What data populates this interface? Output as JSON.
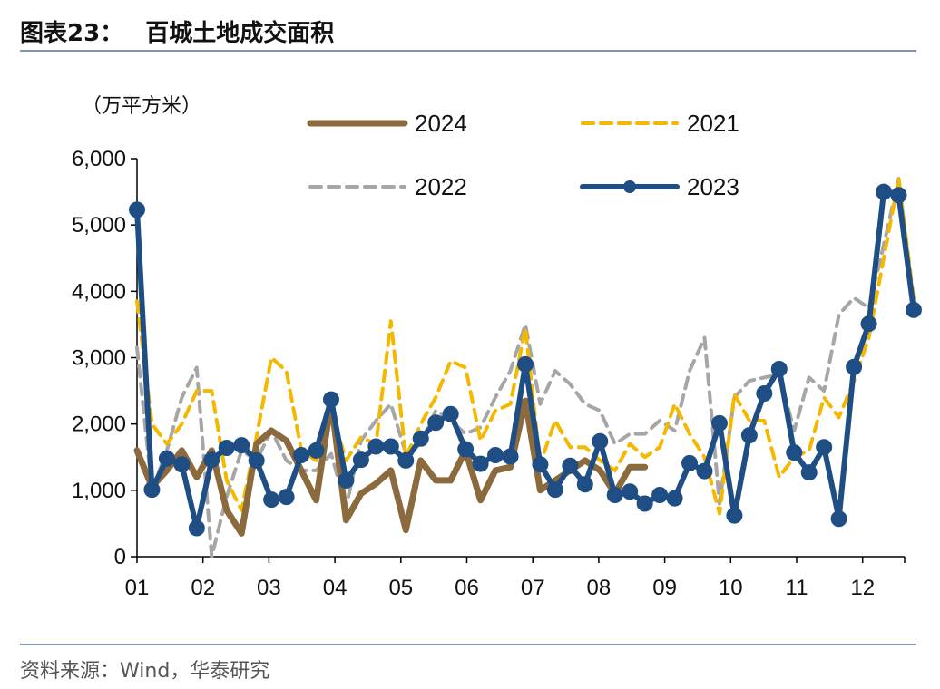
{
  "header": {
    "figure_label": "图表23：",
    "title": "百城土地成交面积"
  },
  "source": "资料来源：Wind，华泰研究",
  "colors": {
    "2024": "#8b6a3e",
    "2021": "#f5b800",
    "2022": "#a6a6a6",
    "2023": "#1f4e84",
    "rule": "#7f98b8",
    "axis": "#000000"
  },
  "chart_data": {
    "type": "line",
    "unit_label": "（万平方米）",
    "x_ticks": [
      "01",
      "02",
      "03",
      "04",
      "05",
      "06",
      "07",
      "08",
      "09",
      "10",
      "11",
      "12"
    ],
    "y_ticks": [
      "0",
      "1,000",
      "2,000",
      "3,000",
      "4,000",
      "5,000",
      "6,000"
    ],
    "ylim": [
      0,
      6000
    ],
    "weeks_per_axis": 53,
    "legend_order": [
      "2024",
      "2021",
      "2022",
      "2023"
    ],
    "series": [
      {
        "name": "2024",
        "style": "solid-thick",
        "values": [
          1600,
          1050,
          1300,
          1600,
          1200,
          1600,
          700,
          350,
          1700,
          1900,
          1750,
          1300,
          850,
          2350,
          550,
          950,
          1100,
          1300,
          400,
          1450,
          1150,
          1150,
          1600,
          850,
          1300,
          1350,
          2350,
          1000,
          1150,
          1300,
          1450,
          1300,
          950,
          1350,
          1350
        ]
      },
      {
        "name": "2021",
        "style": "dashed",
        "values": [
          3850,
          2000,
          1700,
          2000,
          2500,
          2500,
          1150,
          700,
          1800,
          3000,
          2800,
          1600,
          1450,
          2200,
          1450,
          1800,
          1700,
          3550,
          1500,
          2000,
          2400,
          2950,
          2850,
          1750,
          2200,
          2300,
          3450,
          1400,
          2050,
          1650,
          1650,
          1450,
          1300,
          1700,
          1500,
          1650,
          2300,
          1850,
          1500,
          650,
          2450,
          2050,
          2050,
          1200,
          1500,
          1600,
          2400,
          2100,
          2650,
          3300,
          4500,
          5700,
          3900
        ]
      },
      {
        "name": "2022",
        "style": "dashed",
        "values": [
          3150,
          1000,
          1600,
          2400,
          2850,
          0,
          900,
          1600,
          1450,
          1900,
          1450,
          1300,
          1300,
          1550,
          750,
          1750,
          2050,
          2300,
          1550,
          1700,
          2200,
          2050,
          1850,
          1950,
          2400,
          2800,
          3500,
          2300,
          2800,
          2600,
          2300,
          2200,
          1700,
          1850,
          1850,
          2050,
          1900,
          2800,
          3300,
          800,
          2400,
          2650,
          2700,
          2750,
          1900,
          2700,
          2500,
          3650,
          3900,
          3750,
          4700,
          5700,
          3800
        ]
      },
      {
        "name": "2023",
        "style": "solid-markers",
        "values": [
          5230,
          1010,
          1480,
          1390,
          430,
          1460,
          1640,
          1680,
          1450,
          860,
          900,
          1530,
          1600,
          2370,
          1150,
          1460,
          1660,
          1660,
          1450,
          1780,
          2020,
          2150,
          1620,
          1400,
          1530,
          1510,
          2900,
          1390,
          1010,
          1370,
          1090,
          1740,
          930,
          980,
          800,
          930,
          880,
          1410,
          1290,
          2010,
          620,
          1830,
          2460,
          2830,
          1570,
          1270,
          1650,
          570,
          2860,
          3510,
          5500,
          5450,
          3720
        ]
      }
    ]
  }
}
